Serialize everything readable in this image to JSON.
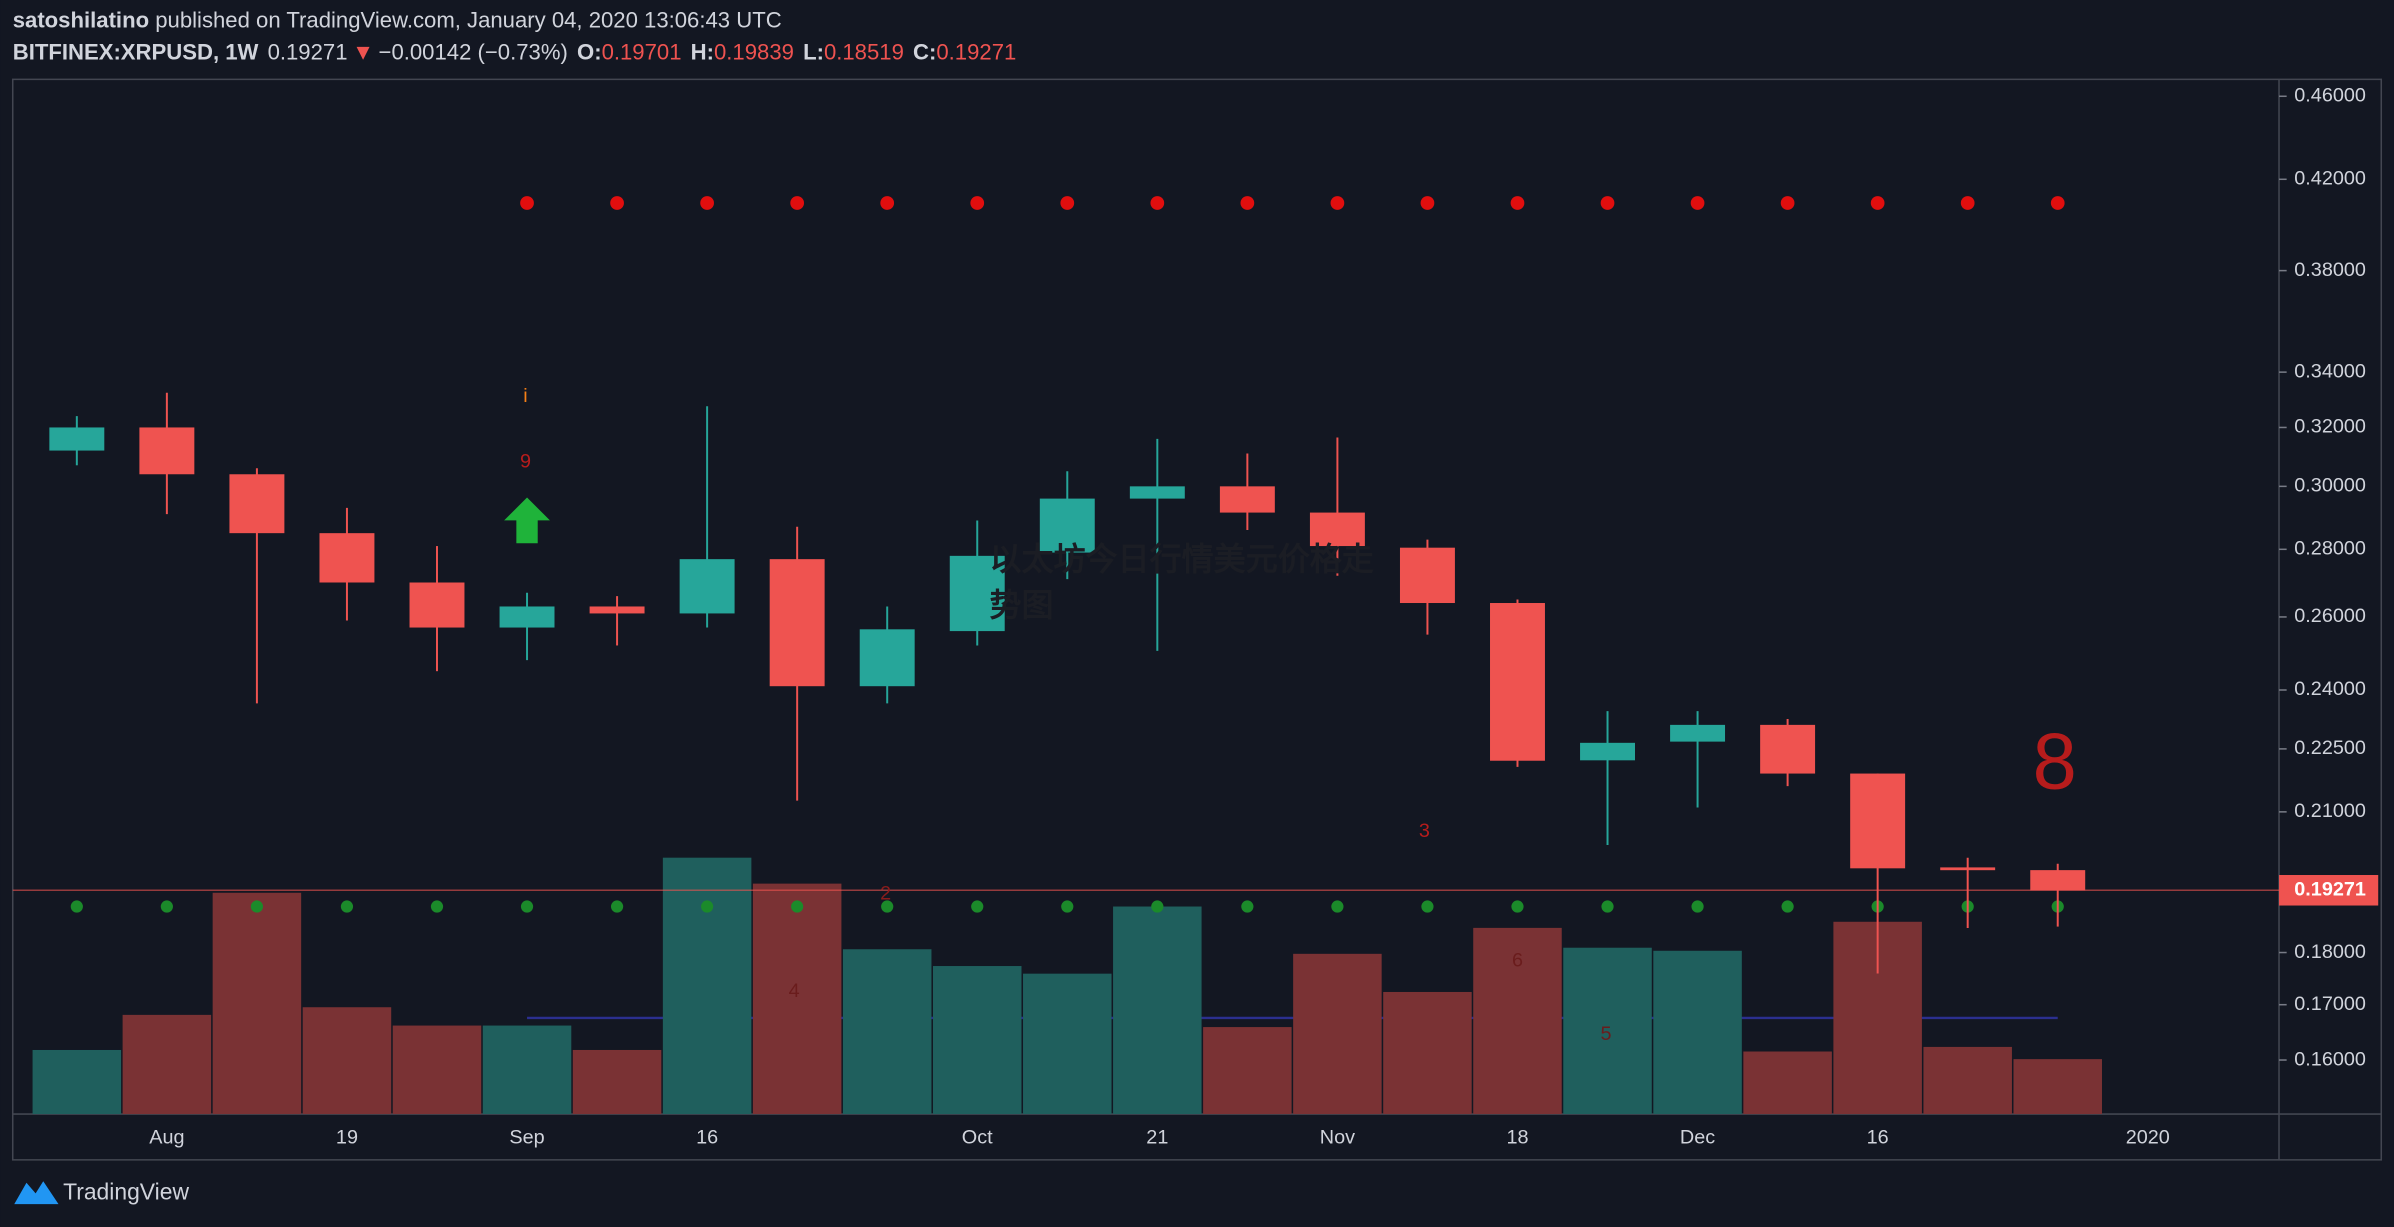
{
  "header": {
    "publisher": "satoshilatino",
    "published": "published on TradingView.com, January 04, 2020 13:06:43 UTC",
    "symbol": "BITFINEX:XRPUSD, 1W",
    "change": "−0.00142 (−0.73%)",
    "open_label": "O:",
    "high_label": "H:",
    "low_label": "L:",
    "close_label": "C:"
  },
  "chart_data": {
    "type": "candlestick",
    "log_scale": true,
    "categories": [
      null,
      "Aug",
      null,
      "19",
      null,
      "Sep",
      null,
      "16",
      null,
      null,
      "Oct",
      null,
      "21",
      null,
      "Nov",
      null,
      "18",
      null,
      "Dec",
      null,
      "16",
      null,
      null,
      "2020"
    ],
    "open": [
      0.312,
      0.32,
      0.304,
      0.285,
      0.27,
      0.257,
      0.263,
      0.261,
      0.277,
      0.241,
      0.256,
      0.279,
      0.296,
      0.3,
      0.2915,
      0.2805,
      0.264,
      0.2222,
      0.2268,
      0.231,
      0.219,
      0.1976,
      0.19701,
      null
    ],
    "high": [
      0.324,
      0.3324,
      0.306,
      0.293,
      0.281,
      0.267,
      0.266,
      0.3275,
      0.287,
      0.263,
      0.289,
      0.305,
      0.316,
      0.311,
      0.3165,
      0.283,
      0.265,
      0.2345,
      0.2345,
      0.2325,
      0.219,
      0.1997,
      0.19839,
      null
    ],
    "low": [
      0.307,
      0.291,
      0.2365,
      0.259,
      0.245,
      0.248,
      0.252,
      0.257,
      0.2126,
      0.2365,
      0.252,
      0.271,
      0.2505,
      0.286,
      0.272,
      0.255,
      0.2206,
      0.2025,
      0.211,
      0.216,
      0.1759,
      0.1849,
      0.18519,
      null
    ],
    "close": [
      0.32,
      0.304,
      0.285,
      0.27,
      0.257,
      0.263,
      0.261,
      0.277,
      0.241,
      0.2565,
      0.278,
      0.296,
      0.3,
      0.2915,
      0.281,
      0.264,
      0.2221,
      0.2265,
      0.231,
      0.219,
      0.1974,
      0.197,
      0.19271,
      null
    ],
    "volume": [
      42,
      65,
      145,
      70,
      58,
      58,
      42,
      168,
      151,
      108,
      97,
      92,
      136,
      57,
      105,
      80,
      122,
      109,
      107,
      41,
      126,
      44,
      36,
      null
    ],
    "volume_lim": [
      0,
      678
    ],
    "up_color": "#26a69a",
    "down_color": "#ef5350",
    "up_volume_color": "#1f5f5d",
    "down_volume_color": "#7a3234",
    "ylim": [
      0.1508,
      0.4686
    ],
    "yticks": [
      {
        "value": 0.46,
        "label": "0.46000"
      },
      {
        "value": 0.42,
        "label": "0.42000"
      },
      {
        "value": 0.38,
        "label": "0.38000"
      },
      {
        "value": 0.34,
        "label": "0.34000"
      },
      {
        "value": 0.32,
        "label": "0.32000"
      },
      {
        "value": 0.3,
        "label": "0.30000"
      },
      {
        "value": 0.28,
        "label": "0.28000"
      },
      {
        "value": 0.26,
        "label": "0.26000"
      },
      {
        "value": 0.24,
        "label": "0.24000"
      },
      {
        "value": 0.225,
        "label": "0.22500"
      },
      {
        "value": 0.21,
        "label": "0.21000"
      },
      {
        "value": 0.18,
        "label": "0.18000"
      },
      {
        "value": 0.17,
        "label": "0.17000"
      },
      {
        "value": 0.16,
        "label": "0.16000"
      }
    ],
    "annotations": [
      "i",
      "9",
      "3",
      "2",
      "4",
      "6",
      "5",
      "8"
    ],
    "watermark": [
      "以太坊今日行情美元价格走",
      "势图"
    ]
  },
  "brand": "TradingView"
}
